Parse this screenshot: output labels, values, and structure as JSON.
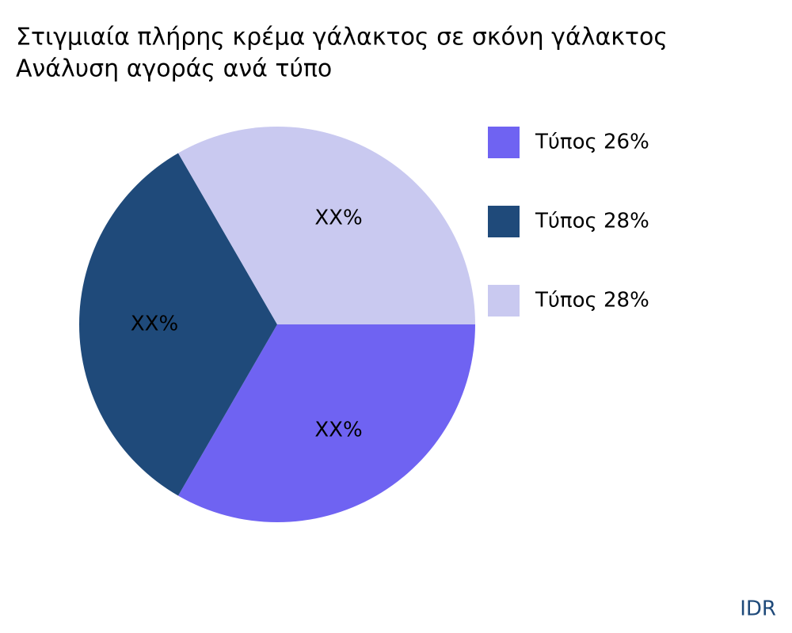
{
  "chart_data": {
    "type": "pie",
    "title": "Στιγμιαία πλήρης κρέμα γάλακτος σε σκόνη γάλακτος",
    "subtitle": "Ανάλυση αγοράς ανά τύπο",
    "categories": [
      "Τύπος 26%",
      "Τύπος 28%",
      "Τύπος 28%"
    ],
    "values": [
      33.3,
      33.3,
      33.3
    ],
    "value_labels": [
      "XX%",
      "XX%",
      "XX%"
    ],
    "colors": [
      "#6f63f2",
      "#1f4a7a",
      "#c9c9f0"
    ],
    "legend": "right",
    "source": "IDR"
  }
}
